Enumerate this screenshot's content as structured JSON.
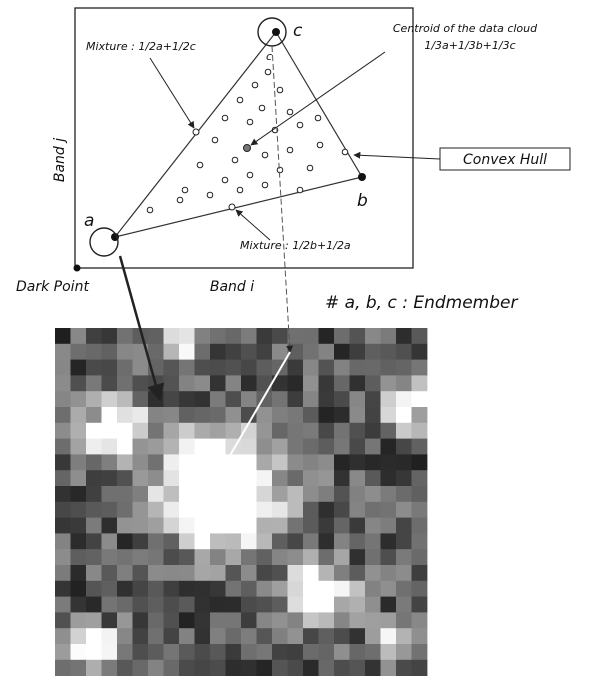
{
  "plot": {
    "vertex_a": "a",
    "vertex_b": "b",
    "vertex_c": "c",
    "vertex_c_small": "c",
    "centroid_title": "Centroid of the data cloud",
    "centroid_formula": "1/3a+1/3b+1/3c",
    "mixture_ac": "Mixture : 1/2a+1/2c",
    "mixture_ab": "Mixture : 1/2b+1/2a",
    "convex_hull": "Convex Hull",
    "dark_point": "Dark Point",
    "x_axis_label": "Band i",
    "y_axis_label": "Band j",
    "endmember_note": "# a, b, c : Endmember"
  }
}
